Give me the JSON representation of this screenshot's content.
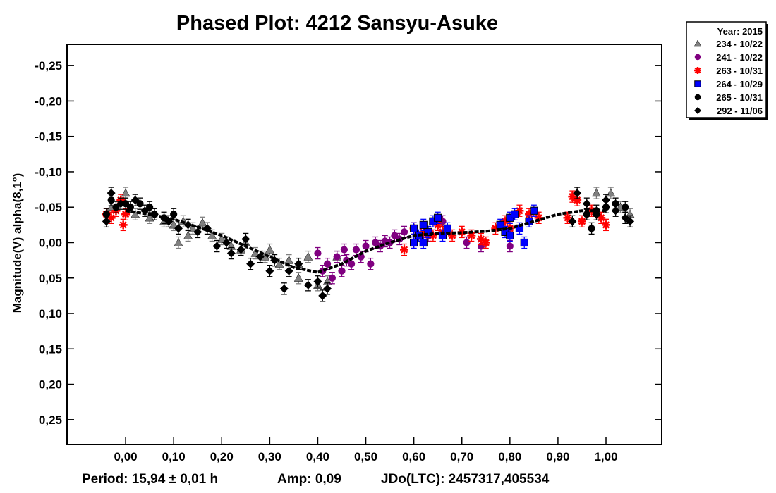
{
  "chart_data": {
    "type": "scatter",
    "title": "Phased Plot: 4212 Sansyu-Asuke",
    "xlabel": "",
    "ylabel": "Magnitude(V) alpha(8,1°)",
    "xlim": [
      -0.122,
      1.116
    ],
    "ylim": [
      -0.28,
      0.285
    ],
    "y_inverted": true,
    "x_ticks": [
      0.0,
      0.1,
      0.2,
      0.3,
      0.4,
      0.5,
      0.6,
      0.7,
      0.8,
      0.9,
      1.0
    ],
    "x_tick_labels": [
      "0,00",
      "0,10",
      "0,20",
      "0,30",
      "0,40",
      "0,50",
      "0,60",
      "0,70",
      "0,80",
      "0,90",
      "1,00"
    ],
    "y_ticks": [
      -0.25,
      -0.2,
      -0.15,
      -0.1,
      -0.05,
      0.0,
      0.05,
      0.1,
      0.15,
      0.2,
      0.25
    ],
    "y_tick_labels": [
      "-0,25",
      "-0,20",
      "-0,15",
      "-0,10",
      "-0,05",
      "0,00",
      "0,05",
      "0,10",
      "0,15",
      "0,20",
      "0,25"
    ],
    "grid": false,
    "legend_placement": "outside-top-right",
    "legend_title": "Year: 2015",
    "error": 0.008,
    "series": [
      {
        "name": "234 - 10/22",
        "marker": "triangle",
        "color": "#808080",
        "edge": "#808080",
        "points": [
          [
            -0.03,
            -0.05
          ],
          [
            0.0,
            -0.07
          ],
          [
            0.02,
            -0.04
          ],
          [
            0.05,
            -0.035
          ],
          [
            0.08,
            -0.03
          ],
          [
            0.1,
            -0.025
          ],
          [
            0.12,
            -0.03
          ],
          [
            0.14,
            -0.02
          ],
          [
            0.16,
            -0.028
          ],
          [
            0.18,
            -0.01
          ],
          [
            0.2,
            -0.005
          ],
          [
            0.22,
            0.005
          ],
          [
            0.24,
            0.01
          ],
          [
            0.25,
            0.0
          ],
          [
            0.27,
            0.015
          ],
          [
            0.29,
            0.02
          ],
          [
            0.3,
            0.01
          ],
          [
            0.32,
            0.03
          ],
          [
            0.34,
            0.025
          ],
          [
            0.36,
            0.03
          ],
          [
            0.38,
            0.02
          ],
          [
            0.4,
            0.06
          ],
          [
            0.42,
            0.055
          ],
          [
            0.44,
            0.02
          ],
          [
            0.36,
            0.05
          ],
          [
            0.98,
            -0.07
          ],
          [
            1.01,
            -0.07
          ],
          [
            1.03,
            -0.05
          ],
          [
            1.05,
            -0.04
          ],
          [
            0.11,
            0.0
          ],
          [
            0.13,
            -0.01
          ]
        ]
      },
      {
        "name": "241 - 10/22",
        "marker": "circle",
        "color": "#800080",
        "edge": "#800080",
        "points": [
          [
            0.41,
            0.04
          ],
          [
            0.42,
            0.03
          ],
          [
            0.43,
            0.05
          ],
          [
            0.44,
            0.02
          ],
          [
            0.45,
            0.04
          ],
          [
            0.46,
            0.025
          ],
          [
            0.47,
            0.03
          ],
          [
            0.48,
            0.01
          ],
          [
            0.49,
            0.02
          ],
          [
            0.5,
            0.005
          ],
          [
            0.51,
            0.03
          ],
          [
            0.52,
            0.0
          ],
          [
            0.53,
            0.005
          ],
          [
            0.54,
            -0.002
          ],
          [
            0.55,
            0.0
          ],
          [
            0.56,
            -0.01
          ],
          [
            0.57,
            -0.005
          ],
          [
            0.58,
            -0.015
          ],
          [
            0.6,
            0.0
          ],
          [
            0.63,
            -0.01
          ],
          [
            0.66,
            -0.03
          ],
          [
            0.71,
            0.0
          ],
          [
            0.74,
            0.005
          ],
          [
            0.8,
            0.005
          ],
          [
            0.4,
            0.015
          ],
          [
            0.455,
            0.01
          ]
        ]
      },
      {
        "name": "263 - 10/31",
        "marker": "asterisk",
        "color": "#ff0000",
        "edge": "#ff0000",
        "points": [
          [
            -0.04,
            -0.04
          ],
          [
            -0.03,
            -0.035
          ],
          [
            -0.02,
            -0.045
          ],
          [
            -0.01,
            -0.06
          ],
          [
            0.0,
            -0.04
          ],
          [
            -0.005,
            -0.025
          ],
          [
            0.58,
            0.01
          ],
          [
            0.6,
            -0.02
          ],
          [
            0.62,
            -0.015
          ],
          [
            0.64,
            -0.01
          ],
          [
            0.65,
            -0.025
          ],
          [
            0.66,
            -0.015
          ],
          [
            0.68,
            -0.01
          ],
          [
            0.7,
            -0.015
          ],
          [
            0.72,
            -0.01
          ],
          [
            0.74,
            -0.005
          ],
          [
            0.75,
            0.0
          ],
          [
            0.77,
            -0.02
          ],
          [
            0.79,
            -0.03
          ],
          [
            0.8,
            -0.02
          ],
          [
            0.82,
            -0.045
          ],
          [
            0.84,
            -0.04
          ],
          [
            0.86,
            -0.035
          ],
          [
            0.92,
            -0.035
          ],
          [
            0.93,
            -0.065
          ],
          [
            0.94,
            -0.06
          ],
          [
            0.95,
            -0.03
          ],
          [
            0.97,
            -0.045
          ],
          [
            0.99,
            -0.035
          ],
          [
            1.0,
            -0.025
          ]
        ]
      },
      {
        "name": "264 - 10/29",
        "marker": "square",
        "color": "#0000ff",
        "edge": "#0000ff",
        "points": [
          [
            0.6,
            -0.02
          ],
          [
            0.61,
            -0.01
          ],
          [
            0.62,
            0.0
          ],
          [
            0.63,
            -0.015
          ],
          [
            0.64,
            -0.03
          ],
          [
            0.65,
            -0.035
          ],
          [
            0.66,
            -0.01
          ],
          [
            0.67,
            -0.02
          ],
          [
            0.6,
            0.0
          ],
          [
            0.62,
            -0.025
          ],
          [
            0.78,
            -0.025
          ],
          [
            0.79,
            -0.015
          ],
          [
            0.8,
            -0.035
          ],
          [
            0.81,
            -0.04
          ],
          [
            0.82,
            -0.02
          ],
          [
            0.83,
            0.0
          ],
          [
            0.84,
            -0.03
          ],
          [
            0.85,
            -0.045
          ],
          [
            0.8,
            -0.01
          ]
        ]
      },
      {
        "name": "265 - 10/31",
        "marker": "circle",
        "color": "#000000",
        "edge": "#000000",
        "points": [
          [
            -0.04,
            -0.04
          ],
          [
            -0.03,
            -0.06
          ],
          [
            -0.02,
            -0.05
          ],
          [
            0.0,
            -0.055
          ],
          [
            0.01,
            -0.05
          ],
          [
            0.03,
            -0.055
          ],
          [
            0.05,
            -0.05
          ],
          [
            0.06,
            -0.04
          ],
          [
            0.08,
            -0.035
          ],
          [
            0.1,
            -0.04
          ],
          [
            0.96,
            -0.04
          ],
          [
            0.98,
            -0.045
          ],
          [
            1.0,
            -0.05
          ],
          [
            1.02,
            -0.055
          ],
          [
            1.04,
            -0.05
          ],
          [
            0.97,
            -0.02
          ]
        ]
      },
      {
        "name": "292 - 11/06",
        "marker": "diamond",
        "color": "#000000",
        "edge": "#000000",
        "points": [
          [
            -0.04,
            -0.03
          ],
          [
            -0.03,
            -0.07
          ],
          [
            -0.01,
            -0.055
          ],
          [
            0.02,
            -0.06
          ],
          [
            0.04,
            -0.045
          ],
          [
            0.06,
            -0.04
          ],
          [
            0.09,
            -0.03
          ],
          [
            0.11,
            -0.02
          ],
          [
            0.13,
            -0.025
          ],
          [
            0.15,
            -0.015
          ],
          [
            0.17,
            -0.02
          ],
          [
            0.19,
            0.005
          ],
          [
            0.21,
            0.0
          ],
          [
            0.22,
            0.015
          ],
          [
            0.24,
            0.01
          ],
          [
            0.26,
            0.03
          ],
          [
            0.28,
            0.02
          ],
          [
            0.3,
            0.04
          ],
          [
            0.31,
            0.025
          ],
          [
            0.33,
            0.065
          ],
          [
            0.34,
            0.04
          ],
          [
            0.36,
            0.03
          ],
          [
            0.38,
            0.06
          ],
          [
            0.4,
            0.055
          ],
          [
            0.41,
            0.075
          ],
          [
            0.42,
            0.065
          ],
          [
            0.25,
            -0.005
          ],
          [
            0.93,
            -0.03
          ],
          [
            0.94,
            -0.07
          ],
          [
            0.96,
            -0.055
          ],
          [
            0.98,
            -0.04
          ],
          [
            1.0,
            -0.06
          ],
          [
            1.02,
            -0.045
          ],
          [
            1.04,
            -0.035
          ],
          [
            1.05,
            -0.03
          ]
        ]
      }
    ],
    "fit_curve": {
      "x": [
        0,
        0.05,
        0.1,
        0.15,
        0.2,
        0.25,
        0.3,
        0.35,
        0.4,
        0.45,
        0.5,
        0.55,
        0.6,
        0.65,
        0.7,
        0.75,
        0.8,
        0.85,
        0.9,
        0.95,
        1.0
      ],
      "y": [
        -0.045,
        -0.04,
        -0.033,
        -0.022,
        -0.01,
        0.005,
        0.02,
        0.035,
        0.042,
        0.03,
        0.012,
        0.0,
        -0.01,
        -0.013,
        -0.014,
        -0.016,
        -0.02,
        -0.03,
        -0.04,
        -0.045,
        -0.045
      ]
    },
    "footer": {
      "period": "Period: 15,94 ± 0,01 h",
      "amp": "Amp: 0,09",
      "jd": "JDo(LTC): 2457317,405534"
    }
  }
}
